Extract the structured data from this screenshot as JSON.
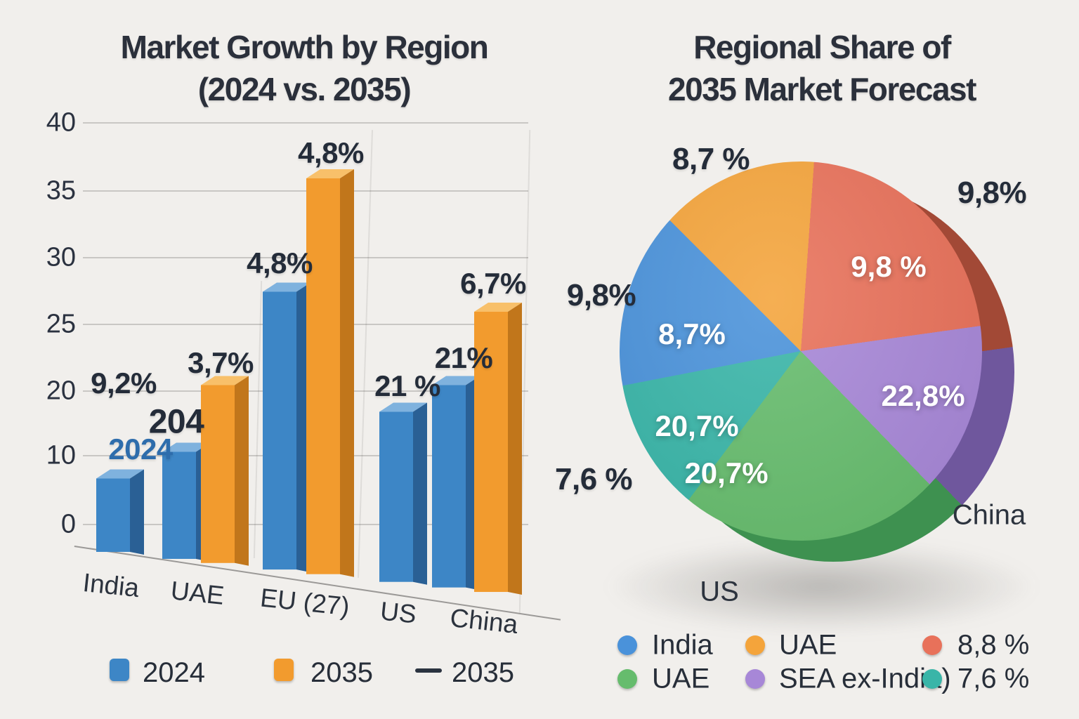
{
  "page": {
    "background_color": "#f1efec"
  },
  "chart_data": [
    {
      "type": "bar",
      "title": "Market Growth by Region (2024 vs. 2035)",
      "title_lines": [
        "Market Growth by Region",
        "(2024 vs. 2035)"
      ],
      "categories": [
        "India",
        "UAE",
        "EU (27)",
        "US",
        "China"
      ],
      "series": [
        {
          "name": "2024",
          "color": "#3d86c6",
          "color_top": "#7fb2de",
          "color_side": "#2a6095",
          "values": [
            7,
            11,
            27.5,
            17,
            20.5
          ]
        },
        {
          "name": "2035",
          "color": "#f29b2e",
          "color_top": "#f8c06a",
          "color_side": "#c1761b",
          "values": [
            null,
            20.5,
            36,
            null,
            26
          ]
        }
      ],
      "printed_labels": [
        "9,2%",
        "204",
        "2024",
        "3,7%",
        "4,8%",
        "4,8%",
        "21 %",
        "21%",
        "6,7%"
      ],
      "y_axis": {
        "ticks": [
          40,
          35,
          30,
          25,
          20,
          10,
          0
        ],
        "nonlinear_scale": true,
        "grid": true
      },
      "legend_items": [
        "2024",
        "2035",
        "2035"
      ],
      "legend_dash_symbol": "—"
    },
    {
      "type": "pie",
      "title": "Regional Share of 2035 Market Forecast",
      "title_lines": [
        "Regional Share of",
        "2035 Market Forecast"
      ],
      "start_angle_deg": 315,
      "slices": [
        {
          "legend": "UAE",
          "label": "",
          "sweep_deg": 49,
          "color": "#f4a43b",
          "color_side": "#c07d22"
        },
        {
          "legend": "8,8 %",
          "label": "9,8 %",
          "sweep_deg": 78,
          "color": "#e8715a",
          "color_side": "#a24936"
        },
        {
          "legend": "SEA ex-India)",
          "label": "22,8%",
          "sweep_deg": 54,
          "color": "#a787d7",
          "color_side": "#6f579d"
        },
        {
          "legend": "UAE",
          "label": "20,7%",
          "sweep_deg": 81,
          "color": "#66bc6d",
          "color_side": "#3e9150"
        },
        {
          "legend": "7,6 %",
          "label": "20,7%",
          "sweep_deg": 42,
          "color": "#39b5a8",
          "color_side": "#2a8b81"
        },
        {
          "legend": "India",
          "label": "8,7%",
          "sweep_deg": 56,
          "color": "#4a92da",
          "color_side": "#2f6cae"
        }
      ],
      "outside_labels": [
        "8,7 %",
        "9,8%",
        "9,8%",
        "7,6 %"
      ],
      "region_labels": [
        "US",
        "China"
      ],
      "legend": [
        {
          "label": "India",
          "color": "#4a92da"
        },
        {
          "label": "UAE",
          "color": "#f4a43b"
        },
        {
          "label": "8,8 %",
          "color": "#e8715a"
        },
        {
          "label": "UAE",
          "color": "#66bc6d"
        },
        {
          "label": "SEA ex-India)",
          "color": "#a787d7"
        },
        {
          "label": "7,6 %",
          "color": "#39b5a8"
        }
      ]
    }
  ]
}
